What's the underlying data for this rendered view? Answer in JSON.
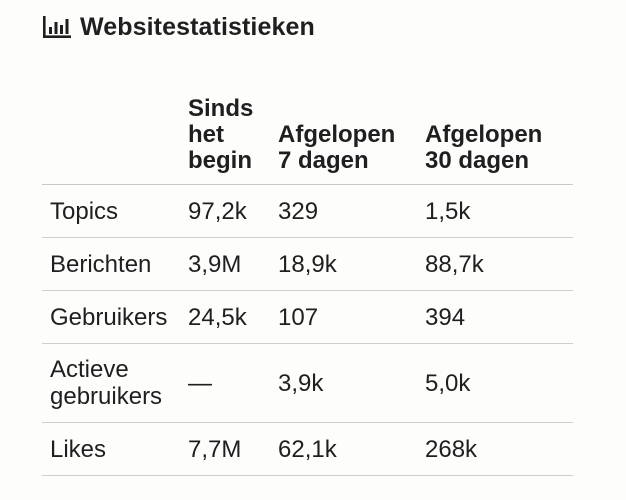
{
  "title": "Websitestatistieken",
  "title_icon": "bar-chart-icon",
  "table": {
    "headers": [
      "",
      "Sinds het begin",
      "Afgelopen 7 dagen",
      "Afgelopen 30 dagen"
    ],
    "rows": [
      {
        "label": "Topics",
        "all_time": "97,2k",
        "last_7": "329",
        "last_30": "1,5k"
      },
      {
        "label": "Berichten",
        "all_time": "3,9M",
        "last_7": "18,9k",
        "last_30": "88,7k"
      },
      {
        "label": "Gebruikers",
        "all_time": "24,5k",
        "last_7": "107",
        "last_30": "394"
      },
      {
        "label": "Actieve gebruikers",
        "all_time": "—",
        "last_7": "3,9k",
        "last_30": "5,0k"
      },
      {
        "label": "Likes",
        "all_time": "7,7M",
        "last_7": "62,1k",
        "last_30": "268k"
      }
    ]
  }
}
